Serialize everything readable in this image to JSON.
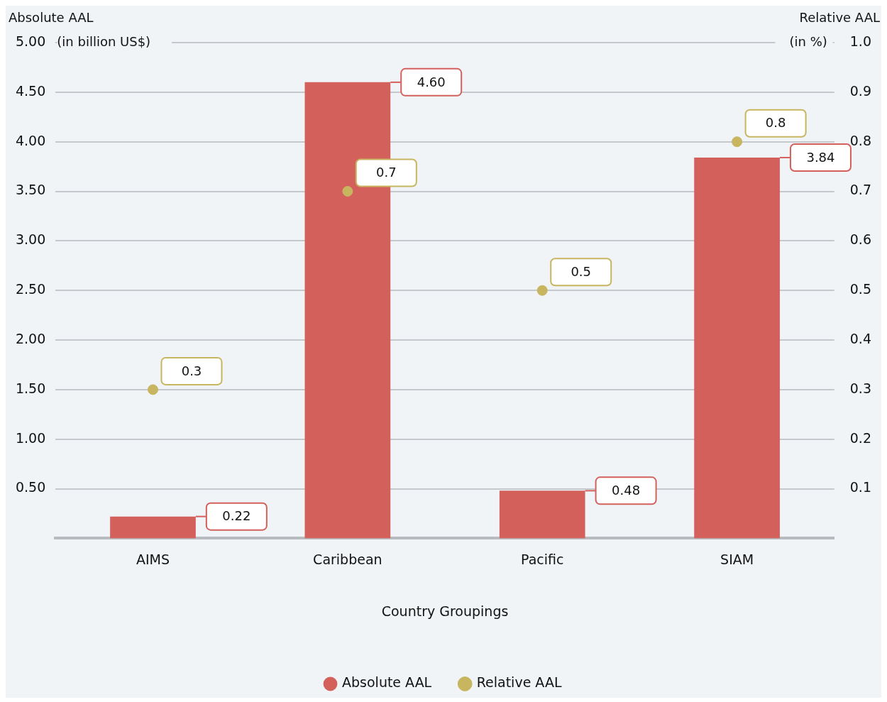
{
  "chart_data": {
    "type": "bar",
    "xlabel": "Country Groupings",
    "ylabel": "Absolute AAL\n(in billion US$)",
    "y2label": "Relative AAL\n(in %)",
    "categories": [
      "AIMS",
      "Caribbean",
      "Pacific",
      "SIAM"
    ],
    "series": [
      {
        "name": "Absolute AAL",
        "color": "#d4605c",
        "values": [
          0.22,
          4.6,
          0.48,
          3.84
        ],
        "value_labels": [
          "0.22",
          "4.60",
          "0.48",
          "3.84"
        ]
      },
      {
        "name": "Relative AAL",
        "type": "scatter",
        "axis": "y2",
        "color": "#c8b560",
        "x": [
          "AIMS",
          "Caribbean",
          "Pacific",
          "SIAM"
        ],
        "values": [
          0.3,
          0.7,
          0.5,
          0.8
        ],
        "value_labels": [
          "0.3",
          "0.7",
          "0.5",
          "0.8"
        ]
      }
    ],
    "ylim": [
      0,
      5
    ],
    "yticks": [
      {
        "value": 0.5,
        "label": "0.50"
      },
      {
        "value": 1,
        "label": "1.00"
      },
      {
        "value": 1.5,
        "label": "1.50"
      },
      {
        "value": 2,
        "label": "2.00"
      },
      {
        "value": 2.5,
        "label": "2.50"
      },
      {
        "value": 3,
        "label": "3.00"
      },
      {
        "value": 3.5,
        "label": "3.50"
      },
      {
        "value": 4,
        "label": "4.00"
      },
      {
        "value": 4.5,
        "label": "4.50"
      },
      {
        "value": 5,
        "label": "5.00"
      }
    ],
    "y2lim": [
      0,
      1
    ],
    "y2ticks": [
      0.1,
      0.2,
      0.3,
      0.4,
      0.5,
      0.6,
      0.7,
      0.8,
      0.9,
      {
        "value": 1,
        "label": "1.0"
      }
    ],
    "grid": "y",
    "legend": "bottom",
    "marker": "circle"
  }
}
